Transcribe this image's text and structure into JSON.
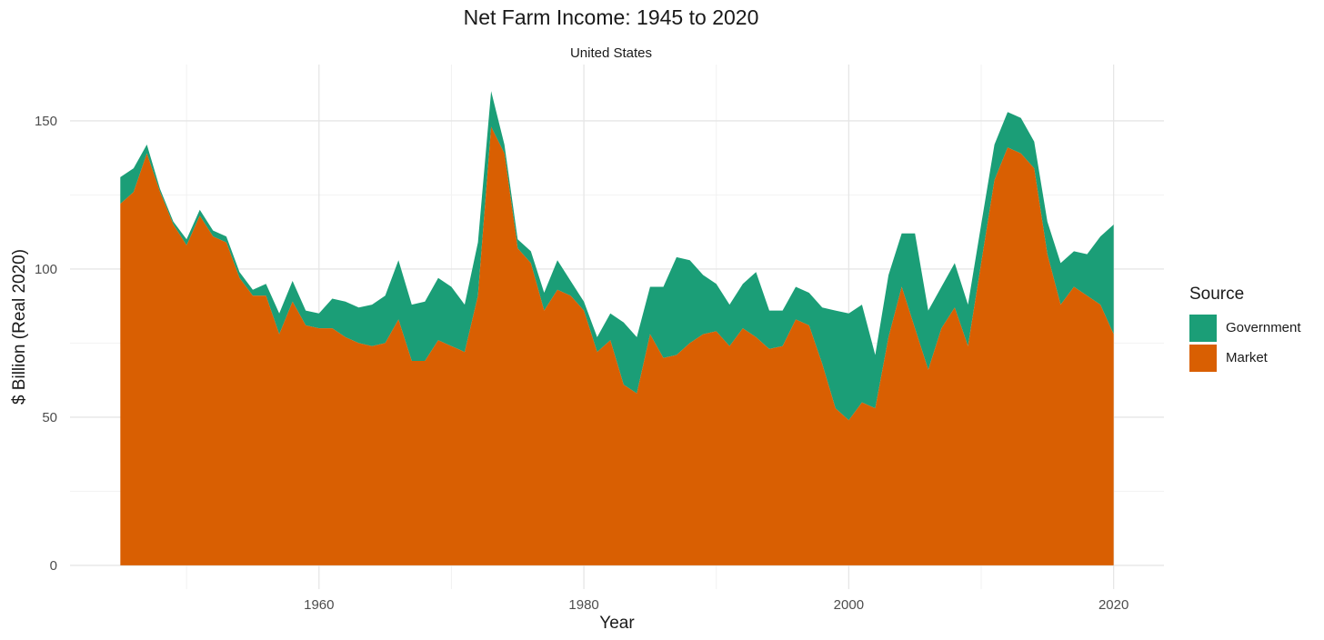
{
  "chart_data": {
    "type": "area",
    "stacked": true,
    "title": "Net Farm Income: 1945 to 2020",
    "subtitle": "United States",
    "xlabel": "Year",
    "ylabel": "$ Billion (Real 2020)",
    "xlim": [
      1941.2,
      2023.8
    ],
    "ylim": [
      -8,
      169
    ],
    "x_ticks": [
      1960,
      1980,
      2000,
      2020
    ],
    "y_ticks": [
      0,
      50,
      100,
      150
    ],
    "grid": true,
    "legend": {
      "title": "Source",
      "position": "right"
    },
    "x": [
      1945,
      1946,
      1947,
      1948,
      1949,
      1950,
      1951,
      1952,
      1953,
      1954,
      1955,
      1956,
      1957,
      1958,
      1959,
      1960,
      1961,
      1962,
      1963,
      1964,
      1965,
      1966,
      1967,
      1968,
      1969,
      1970,
      1971,
      1972,
      1973,
      1974,
      1975,
      1976,
      1977,
      1978,
      1979,
      1980,
      1981,
      1982,
      1983,
      1984,
      1985,
      1986,
      1987,
      1988,
      1989,
      1990,
      1991,
      1992,
      1993,
      1994,
      1995,
      1996,
      1997,
      1998,
      1999,
      2000,
      2001,
      2002,
      2003,
      2004,
      2005,
      2006,
      2007,
      2008,
      2009,
      2010,
      2011,
      2012,
      2013,
      2014,
      2015,
      2016,
      2017,
      2018,
      2019,
      2020
    ],
    "series": [
      {
        "name": "Market",
        "color": "#D95F02",
        "values": [
          122,
          126,
          139,
          126,
          115,
          108,
          118,
          111,
          109,
          97,
          91,
          91,
          78,
          89,
          81,
          80,
          80,
          77,
          75,
          74,
          75,
          83,
          69,
          69,
          76,
          74,
          72,
          91,
          148,
          139,
          107,
          102,
          86,
          93,
          91,
          86,
          72,
          76,
          61,
          58,
          78,
          70,
          71,
          75,
          78,
          79,
          74,
          80,
          77,
          73,
          74,
          83,
          81,
          68,
          53,
          49,
          55,
          53,
          77,
          94,
          80,
          66,
          80,
          87,
          74,
          102,
          130,
          141,
          139,
          134,
          105,
          88,
          94,
          91,
          88,
          78
        ]
      },
      {
        "name": "Government",
        "color": "#1B9E77",
        "values": [
          9,
          8,
          3,
          1,
          1,
          2,
          2,
          2,
          2,
          2,
          2,
          4,
          7,
          7,
          5,
          5,
          10,
          12,
          12,
          14,
          16,
          20,
          19,
          20,
          21,
          20,
          16,
          18,
          12,
          3,
          3,
          4,
          6,
          10,
          5,
          3,
          5,
          9,
          21,
          19,
          16,
          24,
          33,
          28,
          20,
          16,
          14,
          15,
          22,
          13,
          12,
          11,
          11,
          19,
          33,
          36,
          33,
          18,
          21,
          18,
          32,
          20,
          14,
          15,
          14,
          13,
          12,
          12,
          12,
          9,
          11,
          14,
          12,
          14,
          23,
          37
        ]
      }
    ]
  }
}
